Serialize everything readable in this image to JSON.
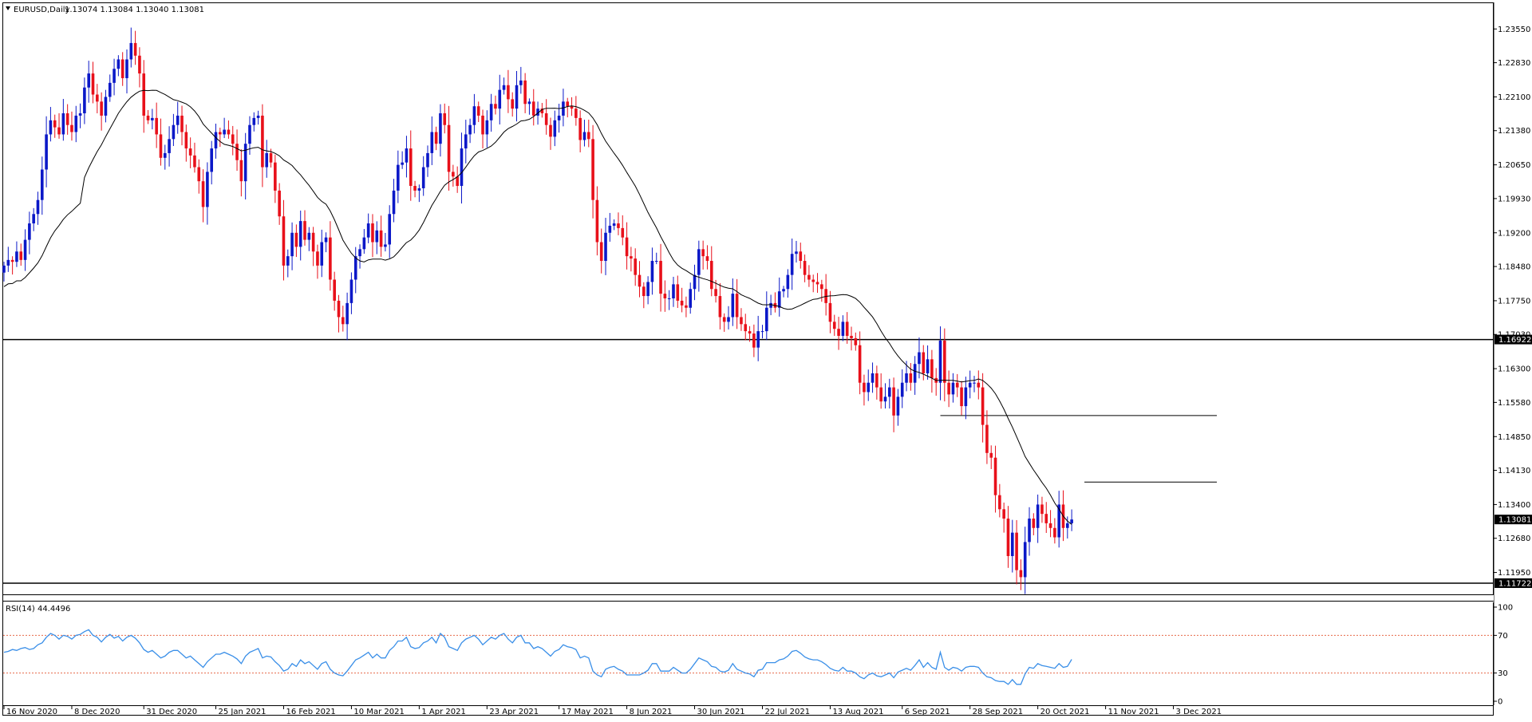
{
  "header": {
    "symbol_label": "EURUSD,Daily",
    "ohlc_text": "1.13074 1.13084 1.13040 1.13081"
  },
  "rsi_header": {
    "label": "RSI(14) 44.4496"
  },
  "colors": {
    "up_candle": "#0b18c8",
    "down_candle": "#e8101a",
    "ma_line": "#000000",
    "rsi_line": "#3a8fe8",
    "rsi_levels": "#e86a4a",
    "price_tag_bg": "#000000",
    "price_tag_text": "#ffffff"
  },
  "chart_data": [
    {
      "type": "candlestick",
      "price_axis_ticks": [
        1.2355,
        1.2283,
        1.221,
        1.2138,
        1.2065,
        1.1993,
        1.192,
        1.1848,
        1.1775,
        1.1703,
        1.163,
        1.1558,
        1.1485,
        1.1413,
        1.134,
        1.1268,
        1.1195
      ],
      "price_axis_labels": [
        "1.23550",
        "1.22830",
        "1.22100",
        "1.21380",
        "1.20650",
        "1.19930",
        "1.19200",
        "1.18480",
        "1.17750",
        "1.17030",
        "1.16300",
        "1.15580",
        "1.14850",
        "1.14130",
        "1.13400",
        "1.12680",
        "1.11950"
      ],
      "ylim": [
        1.115,
        1.241
      ],
      "x_date_labels": [
        {
          "label": "16 Nov 2020",
          "bar": 0
        },
        {
          "label": "8 Dec 2020",
          "bar": 16
        },
        {
          "label": "31 Dec 2020",
          "bar": 33
        },
        {
          "label": "25 Jan 2021",
          "bar": 50
        },
        {
          "label": "16 Feb 2021",
          "bar": 66
        },
        {
          "label": "10 Mar 2021",
          "bar": 82
        },
        {
          "label": "1 Apr 2021",
          "bar": 98
        },
        {
          "label": "23 Apr 2021",
          "bar": 114
        },
        {
          "label": "17 May 2021",
          "bar": 131
        },
        {
          "label": "8 Jun 2021",
          "bar": 147
        },
        {
          "label": "30 Jun 2021",
          "bar": 163
        },
        {
          "label": "22 Jul 2021",
          "bar": 179
        },
        {
          "label": "13 Aug 2021",
          "bar": 195
        },
        {
          "label": "6 Sep 2021",
          "bar": 212
        },
        {
          "label": "28 Sep 2021",
          "bar": 228
        },
        {
          "label": "20 Oct 2021",
          "bar": 244
        },
        {
          "label": "11 Nov 2021",
          "bar": 260
        },
        {
          "label": "3 Dec 2021",
          "bar": 276
        }
      ],
      "closes": [
        1.185,
        1.1862,
        1.1858,
        1.188,
        1.1862,
        1.1905,
        1.194,
        1.196,
        1.199,
        1.2055,
        1.213,
        1.216,
        1.2145,
        1.213,
        1.2175,
        1.215,
        1.2135,
        1.217,
        1.2175,
        1.223,
        1.226,
        1.2215,
        1.22,
        1.217,
        1.221,
        1.224,
        1.227,
        1.229,
        1.225,
        1.229,
        1.2325,
        1.2298,
        1.226,
        1.217,
        1.216,
        1.2165,
        1.213,
        1.208,
        1.209,
        1.212,
        1.215,
        1.217,
        1.2135,
        1.21,
        1.2085,
        1.206,
        1.203,
        1.1975,
        1.205,
        1.21,
        1.2135,
        1.213,
        1.214,
        1.213,
        1.211,
        1.2075,
        1.203,
        1.211,
        1.215,
        1.2165,
        1.217,
        1.206,
        1.209,
        1.207,
        1.201,
        1.1955,
        1.185,
        1.187,
        1.192,
        1.189,
        1.1945,
        1.1905,
        1.192,
        1.188,
        1.185,
        1.19,
        1.191,
        1.182,
        1.1775,
        1.174,
        1.1725,
        1.177,
        1.182,
        1.187,
        1.1885,
        1.191,
        1.194,
        1.19,
        1.1925,
        1.189,
        1.1895,
        1.196,
        1.201,
        1.2065,
        1.207,
        1.21,
        1.202,
        1.201,
        1.2015,
        1.206,
        1.209,
        1.2135,
        1.211,
        1.2175,
        1.215,
        1.205,
        1.204,
        1.202,
        1.21,
        1.213,
        1.215,
        1.219,
        1.217,
        1.213,
        1.216,
        1.2195,
        1.2185,
        1.2225,
        1.2235,
        1.2205,
        1.2185,
        1.2235,
        1.2245,
        1.2195,
        1.22,
        1.217,
        1.2185,
        1.2175,
        1.215,
        1.2125,
        1.216,
        1.217,
        1.22,
        1.219,
        1.2185,
        1.2165,
        1.2118,
        1.2135,
        1.212,
        1.199,
        1.19,
        1.186,
        1.192,
        1.1935,
        1.194,
        1.193,
        1.191,
        1.187,
        1.1865,
        1.183,
        1.1805,
        1.1785,
        1.1815,
        1.186,
        1.186,
        1.179,
        1.178,
        1.178,
        1.181,
        1.1775,
        1.1765,
        1.176,
        1.18,
        1.183,
        1.1885,
        1.187,
        1.186,
        1.18,
        1.1785,
        1.174,
        1.173,
        1.174,
        1.179,
        1.174,
        1.1725,
        1.171,
        1.1705,
        1.1675,
        1.171,
        1.171,
        1.176,
        1.177,
        1.176,
        1.1795,
        1.18,
        1.183,
        1.1875,
        1.188,
        1.186,
        1.183,
        1.182,
        1.1815,
        1.181,
        1.18,
        1.177,
        1.173,
        1.1715,
        1.17,
        1.173,
        1.17,
        1.1695,
        1.168,
        1.16,
        1.158,
        1.16,
        1.162,
        1.159,
        1.156,
        1.157,
        1.159,
        1.153,
        1.157,
        1.16,
        1.162,
        1.16,
        1.164,
        1.1665,
        1.162,
        1.165,
        1.161,
        1.16,
        1.169,
        1.16,
        1.1575,
        1.16,
        1.159,
        1.155,
        1.159,
        1.16,
        1.16,
        1.159,
        1.151,
        1.145,
        1.144,
        1.136,
        1.133,
        1.131,
        1.123,
        1.128,
        1.12,
        1.1185,
        1.126,
        1.131,
        1.129,
        1.134,
        1.132,
        1.13,
        1.129,
        1.127,
        1.134,
        1.129,
        1.13,
        1.13081
      ],
      "ma_period": 20,
      "horizontal_lines": [
        {
          "label": "1.16922",
          "price": 1.16922,
          "full_width": true
        },
        {
          "label": "1.11722",
          "price": 1.11722,
          "full_width": true
        },
        {
          "price": 1.153,
          "full_width": false,
          "from_bar": 221
        },
        {
          "price": 1.1388,
          "full_width": false,
          "from_bar": 255
        }
      ],
      "last_price_label": "1.13081"
    },
    {
      "type": "line",
      "name": "RSI(14)",
      "axis_labels": [
        "100",
        "70",
        "30",
        "0"
      ],
      "axis_ticks": [
        100,
        70,
        30,
        0
      ],
      "levels": [
        70,
        30
      ],
      "ylim": [
        0,
        100
      ],
      "values": [
        52,
        53,
        55,
        54,
        56,
        57,
        55,
        56,
        60,
        62,
        68,
        72,
        70,
        66,
        70,
        69,
        66,
        70,
        71,
        74,
        76,
        70,
        68,
        63,
        68,
        71,
        67,
        69,
        64,
        68,
        70,
        67,
        62,
        55,
        52,
        54,
        50,
        46,
        48,
        52,
        54,
        54,
        50,
        46,
        48,
        44,
        40,
        36,
        42,
        46,
        50,
        50,
        52,
        50,
        48,
        45,
        40,
        48,
        52,
        54,
        56,
        46,
        48,
        47,
        42,
        38,
        32,
        34,
        40,
        37,
        44,
        40,
        42,
        38,
        34,
        40,
        42,
        34,
        30,
        28,
        27,
        32,
        38,
        44,
        46,
        49,
        52,
        46,
        50,
        46,
        46,
        54,
        58,
        64,
        64,
        68,
        58,
        56,
        57,
        62,
        64,
        68,
        62,
        72,
        68,
        58,
        56,
        54,
        62,
        66,
        68,
        70,
        66,
        60,
        64,
        68,
        66,
        70,
        72,
        66,
        62,
        68,
        70,
        62,
        62,
        56,
        58,
        56,
        52,
        48,
        53,
        55,
        60,
        58,
        57,
        55,
        46,
        48,
        46,
        32,
        28,
        26,
        34,
        36,
        37,
        34,
        32,
        28,
        28,
        28,
        28,
        30,
        33,
        40,
        40,
        32,
        32,
        32,
        36,
        33,
        30,
        30,
        34,
        40,
        46,
        44,
        42,
        37,
        36,
        32,
        31,
        33,
        40,
        34,
        32,
        30,
        29,
        26,
        33,
        34,
        41,
        41,
        41,
        44,
        45,
        48,
        53,
        54,
        51,
        47,
        45,
        44,
        44,
        42,
        39,
        35,
        33,
        32,
        36,
        32,
        32,
        30,
        26,
        24,
        28,
        30,
        27,
        26,
        28,
        30,
        25,
        31,
        33,
        35,
        33,
        38,
        44,
        36,
        41,
        36,
        34,
        52,
        36,
        33,
        36,
        35,
        32,
        36,
        37,
        37,
        36,
        30,
        26,
        25,
        22,
        21,
        21,
        18,
        23,
        18,
        18,
        29,
        36,
        35,
        40,
        38,
        37,
        36,
        35,
        40,
        36,
        37,
        44.4496
      ]
    }
  ]
}
